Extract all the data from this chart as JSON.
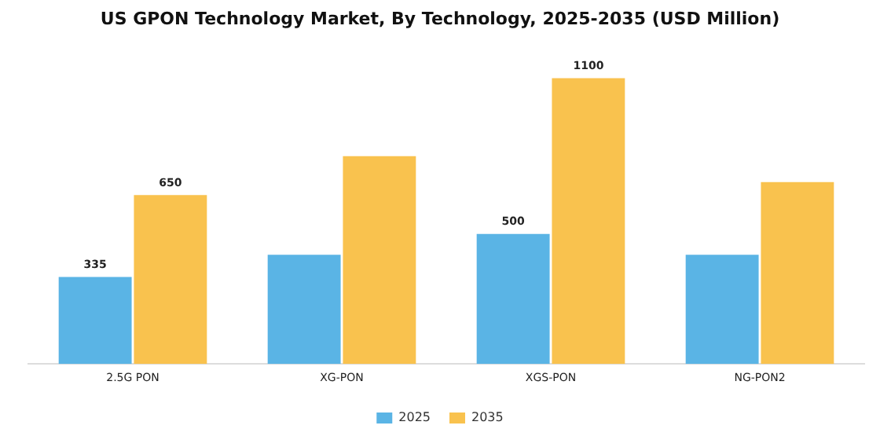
{
  "chart_data": {
    "type": "bar",
    "title": "US GPON Technology Market, By Technology, 2025-2035 (USD Million)",
    "categories": [
      "2.5G PON",
      "XG-PON",
      "XGS-PON",
      "NG-PON2"
    ],
    "series": [
      {
        "name": "2025",
        "color": "#5ab4e5",
        "values": [
          335,
          420,
          500,
          420
        ],
        "value_labels": [
          "335",
          null,
          "500",
          null
        ]
      },
      {
        "name": "2035",
        "color": "#f9c24e",
        "values": [
          650,
          800,
          1100,
          700
        ],
        "value_labels": [
          "650",
          null,
          "1100",
          null
        ]
      }
    ],
    "legend": "bottom",
    "grid": false
  }
}
